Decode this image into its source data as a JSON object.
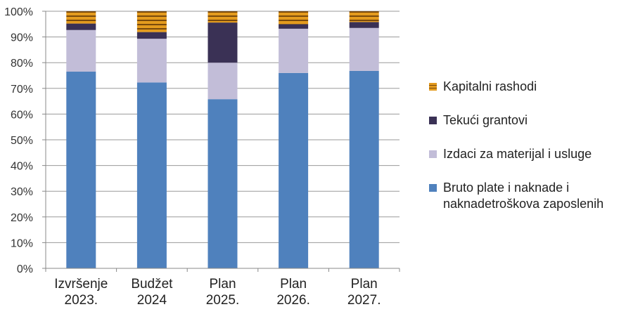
{
  "chart_data": {
    "type": "bar",
    "stacked": true,
    "normalized": true,
    "categories": [
      [
        "Izvršenje",
        "2023."
      ],
      [
        "Budžet",
        "2024"
      ],
      [
        "Plan",
        "2025."
      ],
      [
        "Plan",
        "2026."
      ],
      [
        "Plan",
        "2027."
      ]
    ],
    "series": [
      {
        "name": "Bruto plate i naknade i naknadetroškova zaposlenih",
        "color": "#4F81BD",
        "values": [
          76.5,
          72.3,
          65.8,
          76.0,
          76.8
        ]
      },
      {
        "name": "Izdaci za materijal i usluge",
        "color": "#C2BDD8",
        "values": [
          16.2,
          17.0,
          14.2,
          17.2,
          16.7
        ]
      },
      {
        "name": "Tekući grantovi",
        "color": "#3A3155",
        "values": [
          2.5,
          2.6,
          15.6,
          1.7,
          2.3
        ]
      },
      {
        "name": "Kapitalni rashodi",
        "color": "#E49B1E",
        "values": [
          4.8,
          8.1,
          4.4,
          5.1,
          4.2
        ]
      }
    ],
    "yticks": [
      "0%",
      "10%",
      "20%",
      "30%",
      "40%",
      "50%",
      "60%",
      "70%",
      "80%",
      "90%",
      "100%"
    ],
    "ylim": [
      0,
      100
    ],
    "grid": true,
    "legend_position": "right"
  }
}
